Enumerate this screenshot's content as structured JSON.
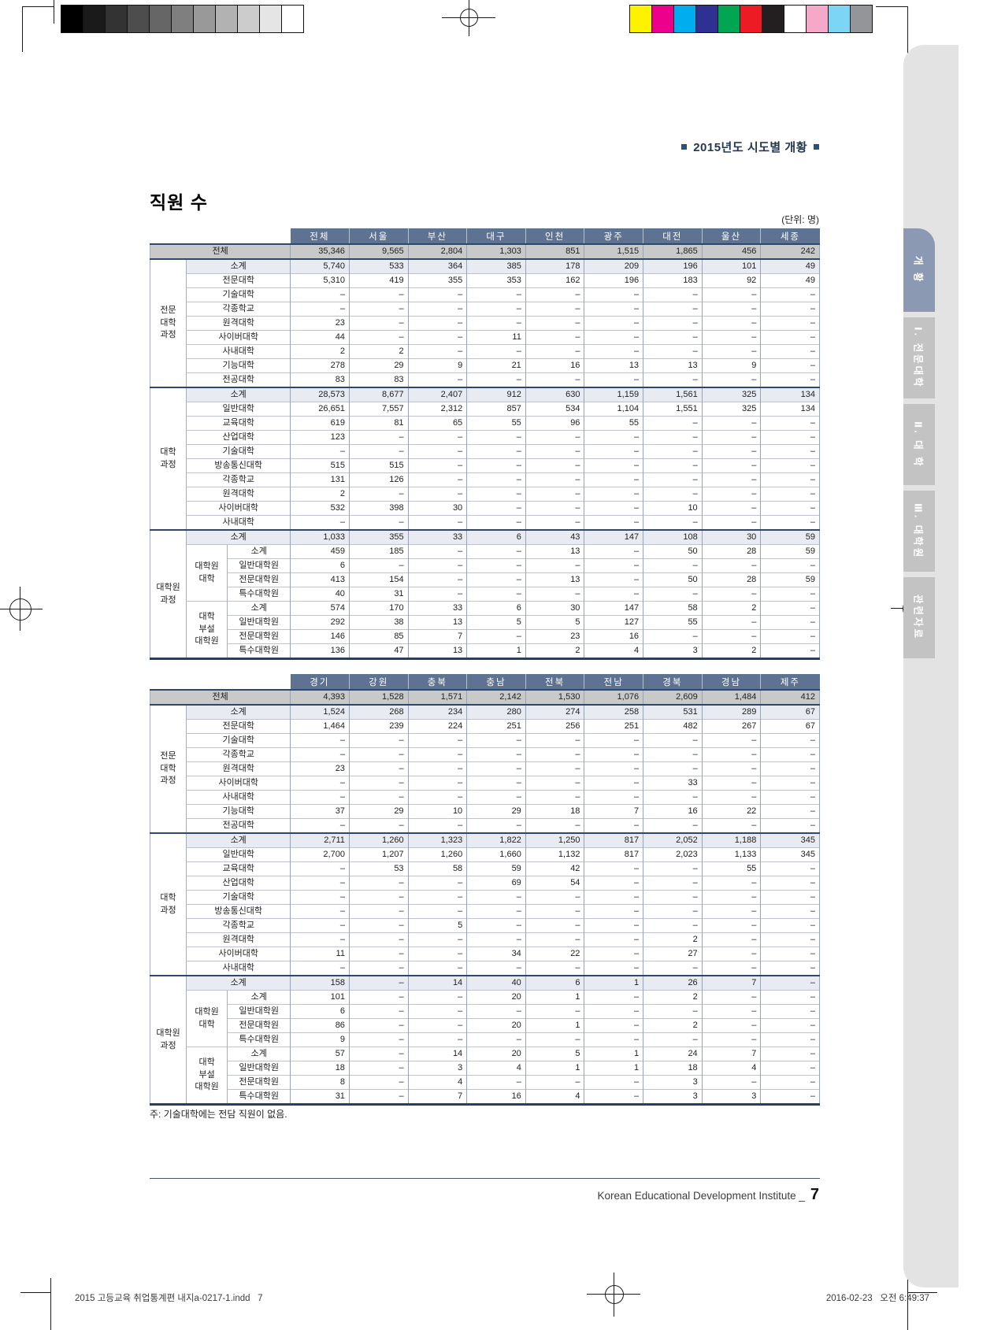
{
  "page": {
    "header_right": "2015년도 시도별 개황",
    "title": "직원 수",
    "unit_label": "(단위: 명)",
    "note": "주: 기술대학에는 전담 직원이 없음.",
    "footer": {
      "institute": "Korean Educational Development Institute _",
      "page_number": "7"
    },
    "print_footer": {
      "left": "2015 고등교육 취업통계편 내지a-0217-1.indd   7",
      "right": "2016-02-23   오전 6:49:37"
    }
  },
  "print_marks": {
    "grayscale_bar": [
      "#000000",
      "#1a1a1a",
      "#333333",
      "#4d4d4d",
      "#666666",
      "#7f7f7f",
      "#999999",
      "#b2b2b2",
      "#cccccc",
      "#e5e5e5",
      "#ffffff"
    ],
    "color_bar": [
      "#fff200",
      "#ec008c",
      "#00aeef",
      "#2e3192",
      "#00a651",
      "#ed1c24",
      "#231f20",
      "#ffffff",
      "#f5a8c8",
      "#7dd5f5",
      "#939598"
    ]
  },
  "sidebar": {
    "tabs": [
      {
        "label": "개 황",
        "active": true
      },
      {
        "label": "Ⅰ. 전문대학",
        "active": false
      },
      {
        "label": "Ⅱ. 대 학",
        "active": false
      },
      {
        "label": "Ⅲ. 대학원",
        "active": false
      },
      {
        "label": "관련자료",
        "active": false
      }
    ]
  },
  "tables": [
    {
      "columns": [
        "전체",
        "서울",
        "부산",
        "대구",
        "인천",
        "광주",
        "대전",
        "울산",
        "세종"
      ],
      "groups": [
        {
          "label": "전문\n대학\n과정",
          "start": 1,
          "end": 9
        },
        {
          "label": "대학\n과정",
          "start": 10,
          "end": 19
        },
        {
          "label": "대학원\n과정",
          "start": 20,
          "end": 28
        }
      ],
      "subgroups": [
        {
          "label": "대학원\n대학",
          "start": 21,
          "end": 24
        },
        {
          "label": "대학\n부설\n대학원",
          "start": 25,
          "end": 28
        }
      ],
      "rows": [
        {
          "label": "전체",
          "kind": "total",
          "values": [
            "35,346",
            "9,565",
            "2,804",
            "1,303",
            "851",
            "1,515",
            "1,865",
            "456",
            "242"
          ]
        },
        {
          "label": "소계",
          "kind": "subtotal",
          "values": [
            "5,740",
            "533",
            "364",
            "385",
            "178",
            "209",
            "196",
            "101",
            "49"
          ]
        },
        {
          "label": "전문대학",
          "values": [
            "5,310",
            "419",
            "355",
            "353",
            "162",
            "196",
            "183",
            "92",
            "49"
          ]
        },
        {
          "label": "기술대학",
          "values": [
            "–",
            "–",
            "–",
            "–",
            "–",
            "–",
            "–",
            "–",
            "–"
          ]
        },
        {
          "label": "각종학교",
          "values": [
            "–",
            "–",
            "–",
            "–",
            "–",
            "–",
            "–",
            "–",
            "–"
          ]
        },
        {
          "label": "원격대학",
          "values": [
            "23",
            "–",
            "–",
            "–",
            "–",
            "–",
            "–",
            "–",
            "–"
          ]
        },
        {
          "label": "사이버대학",
          "values": [
            "44",
            "–",
            "–",
            "11",
            "–",
            "–",
            "–",
            "–",
            "–"
          ]
        },
        {
          "label": "사내대학",
          "values": [
            "2",
            "2",
            "–",
            "–",
            "–",
            "–",
            "–",
            "–",
            "–"
          ]
        },
        {
          "label": "기능대학",
          "values": [
            "278",
            "29",
            "9",
            "21",
            "16",
            "13",
            "13",
            "9",
            "–"
          ]
        },
        {
          "label": "전공대학",
          "values": [
            "83",
            "83",
            "–",
            "–",
            "–",
            "–",
            "–",
            "–",
            "–"
          ]
        },
        {
          "label": "소계",
          "kind": "subtotal",
          "values": [
            "28,573",
            "8,677",
            "2,407",
            "912",
            "630",
            "1,159",
            "1,561",
            "325",
            "134"
          ]
        },
        {
          "label": "일반대학",
          "values": [
            "26,651",
            "7,557",
            "2,312",
            "857",
            "534",
            "1,104",
            "1,551",
            "325",
            "134"
          ]
        },
        {
          "label": "교육대학",
          "values": [
            "619",
            "81",
            "65",
            "55",
            "96",
            "55",
            "–",
            "–",
            "–"
          ]
        },
        {
          "label": "산업대학",
          "values": [
            "123",
            "–",
            "–",
            "–",
            "–",
            "–",
            "–",
            "–",
            "–"
          ]
        },
        {
          "label": "기술대학",
          "values": [
            "–",
            "–",
            "–",
            "–",
            "–",
            "–",
            "–",
            "–",
            "–"
          ]
        },
        {
          "label": "방송통신대학",
          "values": [
            "515",
            "515",
            "–",
            "–",
            "–",
            "–",
            "–",
            "–",
            "–"
          ]
        },
        {
          "label": "각종학교",
          "values": [
            "131",
            "126",
            "–",
            "–",
            "–",
            "–",
            "–",
            "–",
            "–"
          ]
        },
        {
          "label": "원격대학",
          "values": [
            "2",
            "–",
            "–",
            "–",
            "–",
            "–",
            "–",
            "–",
            "–"
          ]
        },
        {
          "label": "사이버대학",
          "values": [
            "532",
            "398",
            "30",
            "–",
            "–",
            "–",
            "10",
            "–",
            "–"
          ]
        },
        {
          "label": "사내대학",
          "values": [
            "–",
            "–",
            "–",
            "–",
            "–",
            "–",
            "–",
            "–",
            "–"
          ]
        },
        {
          "label": "소계",
          "kind": "subtotal",
          "values": [
            "1,033",
            "355",
            "33",
            "6",
            "43",
            "147",
            "108",
            "30",
            "59"
          ]
        },
        {
          "label": "소계",
          "values": [
            "459",
            "185",
            "–",
            "–",
            "13",
            "–",
            "50",
            "28",
            "59"
          ]
        },
        {
          "label": "일반대학원",
          "values": [
            "6",
            "–",
            "–",
            "–",
            "–",
            "–",
            "–",
            "–",
            "–"
          ]
        },
        {
          "label": "전문대학원",
          "values": [
            "413",
            "154",
            "–",
            "–",
            "13",
            "–",
            "50",
            "28",
            "59"
          ]
        },
        {
          "label": "특수대학원",
          "values": [
            "40",
            "31",
            "–",
            "–",
            "–",
            "–",
            "–",
            "–",
            "–"
          ]
        },
        {
          "label": "소계",
          "values": [
            "574",
            "170",
            "33",
            "6",
            "30",
            "147",
            "58",
            "2",
            "–"
          ]
        },
        {
          "label": "일반대학원",
          "values": [
            "292",
            "38",
            "13",
            "5",
            "5",
            "127",
            "55",
            "–",
            "–"
          ]
        },
        {
          "label": "전문대학원",
          "values": [
            "146",
            "85",
            "7",
            "–",
            "23",
            "16",
            "–",
            "–",
            "–"
          ]
        },
        {
          "label": "특수대학원",
          "values": [
            "136",
            "47",
            "13",
            "1",
            "2",
            "4",
            "3",
            "2",
            "–"
          ]
        }
      ]
    },
    {
      "columns": [
        "경기",
        "강원",
        "충북",
        "충남",
        "전북",
        "전남",
        "경북",
        "경남",
        "제주"
      ],
      "groups": [
        {
          "label": "전문\n대학\n과정",
          "start": 1,
          "end": 9
        },
        {
          "label": "대학\n과정",
          "start": 10,
          "end": 19
        },
        {
          "label": "대학원\n과정",
          "start": 20,
          "end": 28
        }
      ],
      "subgroups": [
        {
          "label": "대학원\n대학",
          "start": 21,
          "end": 24
        },
        {
          "label": "대학\n부설\n대학원",
          "start": 25,
          "end": 28
        }
      ],
      "rows": [
        {
          "label": "전체",
          "kind": "total",
          "values": [
            "4,393",
            "1,528",
            "1,571",
            "2,142",
            "1,530",
            "1,076",
            "2,609",
            "1,484",
            "412"
          ]
        },
        {
          "label": "소계",
          "kind": "subtotal",
          "values": [
            "1,524",
            "268",
            "234",
            "280",
            "274",
            "258",
            "531",
            "289",
            "67"
          ]
        },
        {
          "label": "전문대학",
          "values": [
            "1,464",
            "239",
            "224",
            "251",
            "256",
            "251",
            "482",
            "267",
            "67"
          ]
        },
        {
          "label": "기술대학",
          "values": [
            "–",
            "–",
            "–",
            "–",
            "–",
            "–",
            "–",
            "–",
            "–"
          ]
        },
        {
          "label": "각종학교",
          "values": [
            "–",
            "–",
            "–",
            "–",
            "–",
            "–",
            "–",
            "–",
            "–"
          ]
        },
        {
          "label": "원격대학",
          "values": [
            "23",
            "–",
            "–",
            "–",
            "–",
            "–",
            "–",
            "–",
            "–"
          ]
        },
        {
          "label": "사이버대학",
          "values": [
            "–",
            "–",
            "–",
            "–",
            "–",
            "–",
            "33",
            "–",
            "–"
          ]
        },
        {
          "label": "사내대학",
          "values": [
            "–",
            "–",
            "–",
            "–",
            "–",
            "–",
            "–",
            "–",
            "–"
          ]
        },
        {
          "label": "기능대학",
          "values": [
            "37",
            "29",
            "10",
            "29",
            "18",
            "7",
            "16",
            "22",
            "–"
          ]
        },
        {
          "label": "전공대학",
          "values": [
            "–",
            "–",
            "–",
            "–",
            "–",
            "–",
            "–",
            "–",
            "–"
          ]
        },
        {
          "label": "소계",
          "kind": "subtotal",
          "values": [
            "2,711",
            "1,260",
            "1,323",
            "1,822",
            "1,250",
            "817",
            "2,052",
            "1,188",
            "345"
          ]
        },
        {
          "label": "일반대학",
          "values": [
            "2,700",
            "1,207",
            "1,260",
            "1,660",
            "1,132",
            "817",
            "2,023",
            "1,133",
            "345"
          ]
        },
        {
          "label": "교육대학",
          "values": [
            "–",
            "53",
            "58",
            "59",
            "42",
            "–",
            "–",
            "55",
            "–"
          ]
        },
        {
          "label": "산업대학",
          "values": [
            "–",
            "–",
            "–",
            "69",
            "54",
            "–",
            "–",
            "–",
            "–"
          ]
        },
        {
          "label": "기술대학",
          "values": [
            "–",
            "–",
            "–",
            "–",
            "–",
            "–",
            "–",
            "–",
            "–"
          ]
        },
        {
          "label": "방송통신대학",
          "values": [
            "–",
            "–",
            "–",
            "–",
            "–",
            "–",
            "–",
            "–",
            "–"
          ]
        },
        {
          "label": "각종학교",
          "values": [
            "–",
            "–",
            "5",
            "–",
            "–",
            "–",
            "–",
            "–",
            "–"
          ]
        },
        {
          "label": "원격대학",
          "values": [
            "–",
            "–",
            "–",
            "–",
            "–",
            "–",
            "2",
            "–",
            "–"
          ]
        },
        {
          "label": "사이버대학",
          "values": [
            "11",
            "–",
            "–",
            "34",
            "22",
            "–",
            "27",
            "–",
            "–"
          ]
        },
        {
          "label": "사내대학",
          "values": [
            "–",
            "–",
            "–",
            "–",
            "–",
            "–",
            "–",
            "–",
            "–"
          ]
        },
        {
          "label": "소계",
          "kind": "subtotal",
          "values": [
            "158",
            "–",
            "14",
            "40",
            "6",
            "1",
            "26",
            "7",
            "–"
          ]
        },
        {
          "label": "소계",
          "values": [
            "101",
            "–",
            "–",
            "20",
            "1",
            "–",
            "2",
            "–",
            "–"
          ]
        },
        {
          "label": "일반대학원",
          "values": [
            "6",
            "–",
            "–",
            "–",
            "–",
            "–",
            "–",
            "–",
            "–"
          ]
        },
        {
          "label": "전문대학원",
          "values": [
            "86",
            "–",
            "–",
            "20",
            "1",
            "–",
            "2",
            "–",
            "–"
          ]
        },
        {
          "label": "특수대학원",
          "values": [
            "9",
            "–",
            "–",
            "–",
            "–",
            "–",
            "–",
            "–",
            "–"
          ]
        },
        {
          "label": "소계",
          "values": [
            "57",
            "–",
            "14",
            "20",
            "5",
            "1",
            "24",
            "7",
            "–"
          ]
        },
        {
          "label": "일반대학원",
          "values": [
            "18",
            "–",
            "3",
            "4",
            "1",
            "1",
            "18",
            "4",
            "–"
          ]
        },
        {
          "label": "전문대학원",
          "values": [
            "8",
            "–",
            "4",
            "–",
            "–",
            "–",
            "3",
            "–",
            "–"
          ]
        },
        {
          "label": "특수대학원",
          "values": [
            "31",
            "–",
            "7",
            "16",
            "4",
            "–",
            "3",
            "3",
            "–"
          ]
        }
      ]
    }
  ]
}
